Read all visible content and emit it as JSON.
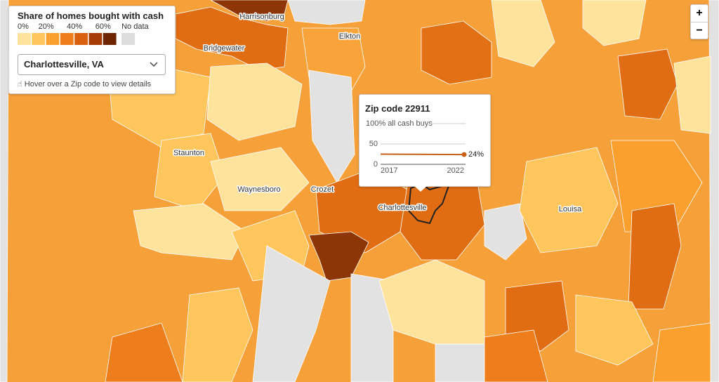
{
  "legend": {
    "title": "Share of homes bought with cash",
    "ticks": [
      {
        "value": 0,
        "label": "0%"
      },
      {
        "value": 20,
        "label": "20%"
      },
      {
        "value": 40,
        "label": "40%"
      },
      {
        "value": 60,
        "label": "60%"
      }
    ],
    "colors": [
      "#fde39b",
      "#fec65c",
      "#fb9f2e",
      "#ee7d1b",
      "#d9600d",
      "#a83c07",
      "#6f2404"
    ],
    "no_data_label": "No data",
    "no_data_color": "#dcdcdc"
  },
  "dropdown": {
    "selected": "Charlottesville, VA"
  },
  "hint": "Hover over a Zip code to view details",
  "zoom": {
    "in": "+",
    "out": "−"
  },
  "places": [
    "Harrisonburg",
    "Elkton",
    "Bridgewater",
    "Staunton",
    "Waynesboro",
    "Crozet",
    "Charlottesville",
    "Louisa"
  ],
  "tooltip": {
    "title": "Zip code 22911",
    "chart_data": {
      "type": "line",
      "x": [
        2017,
        2022
      ],
      "xlim": [
        2017,
        2022
      ],
      "xticks": [
        2017,
        2022
      ],
      "ylim": [
        0,
        100
      ],
      "yticks": [
        0,
        50,
        {
          "value": 100,
          "label": "100% all cash buys"
        }
      ],
      "series": [
        {
          "color": "#c8601a",
          "values": [
            25,
            24
          ],
          "value_labels": [
            null,
            "24%"
          ]
        }
      ]
    }
  }
}
